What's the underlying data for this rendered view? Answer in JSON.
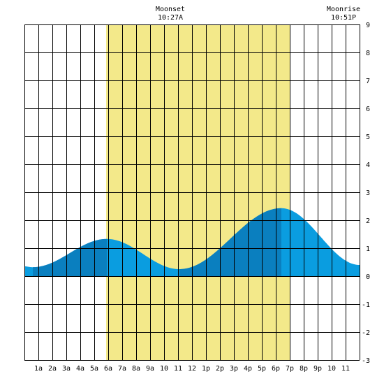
{
  "chart_data": {
    "type": "area",
    "x_tick_labels": [
      "1a",
      "2a",
      "3a",
      "4a",
      "5a",
      "6a",
      "7a",
      "8a",
      "9a",
      "10",
      "11",
      "12",
      "1p",
      "2p",
      "3p",
      "4p",
      "5p",
      "6p",
      "7p",
      "8p",
      "9p",
      "10",
      "11"
    ],
    "y_tick_labels": [
      "9",
      "8",
      "7",
      "6",
      "5",
      "4",
      "3",
      "2",
      "1",
      "0",
      "-1",
      "-2",
      "-3"
    ],
    "ylim": [
      -3,
      9
    ],
    "xlim_hours": [
      0,
      24
    ],
    "daylight_hours": [
      5.85,
      19.05
    ],
    "tide_curve": [
      {
        "hour": 0.0,
        "ft": 0.35
      },
      {
        "hour": 0.6,
        "ft": 0.32
      },
      {
        "hour": 5.9,
        "ft": 1.33
      },
      {
        "hour": 11.1,
        "ft": 0.25
      },
      {
        "hour": 18.4,
        "ft": 2.43
      },
      {
        "hour": 24.0,
        "ft": 0.4
      }
    ],
    "dark_bands": [
      [
        0.6,
        5.9
      ],
      [
        11.1,
        18.4
      ]
    ],
    "annotations": [
      {
        "label": "Moonset",
        "time": "10:27A",
        "hour": 10.45
      },
      {
        "label": "Moonrise",
        "time": "10:51P",
        "hour": 22.85
      }
    ],
    "colors": {
      "daylight": "#f3e98a",
      "tide_light": "#0a9de0",
      "tide_dark": "#0a7fbf",
      "grid": "#000000",
      "background": "#ffffff"
    }
  }
}
